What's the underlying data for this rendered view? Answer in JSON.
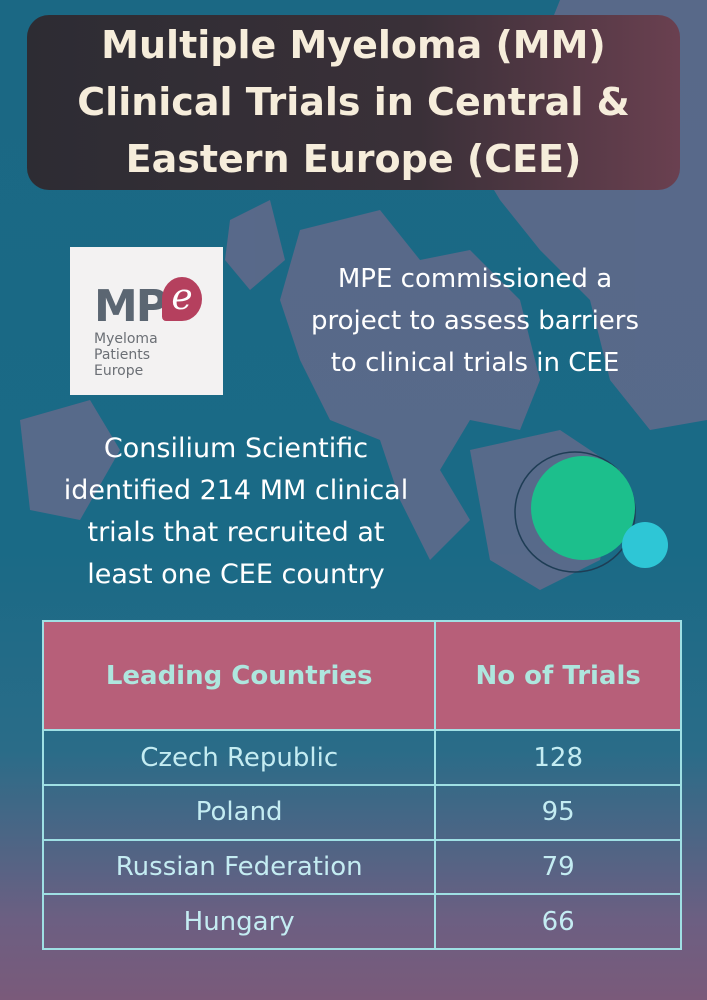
{
  "header": {
    "title": [
      "Multiple Myeloma (MM)",
      "Clinical Trials in Central &",
      "Eastern Europe (CEE)"
    ]
  },
  "logo": {
    "initials": "MP",
    "letter": "e",
    "words": [
      "Myeloma",
      "Patients",
      "Europe"
    ]
  },
  "intro": [
    "MPE commissioned a",
    "project to assess barriers",
    "to clinical trials in CEE"
  ],
  "finding": [
    "Consilium Scientific",
    "identified 214 MM clinical",
    "trials that recruited at",
    "least one CEE country"
  ],
  "table": {
    "columns": [
      "Leading Countries",
      "No of Trials"
    ],
    "rows": [
      [
        "Czech Republic",
        128
      ],
      [
        "Poland",
        95
      ],
      [
        "Russian Federation",
        79
      ],
      [
        "Hungary",
        66
      ]
    ]
  }
}
